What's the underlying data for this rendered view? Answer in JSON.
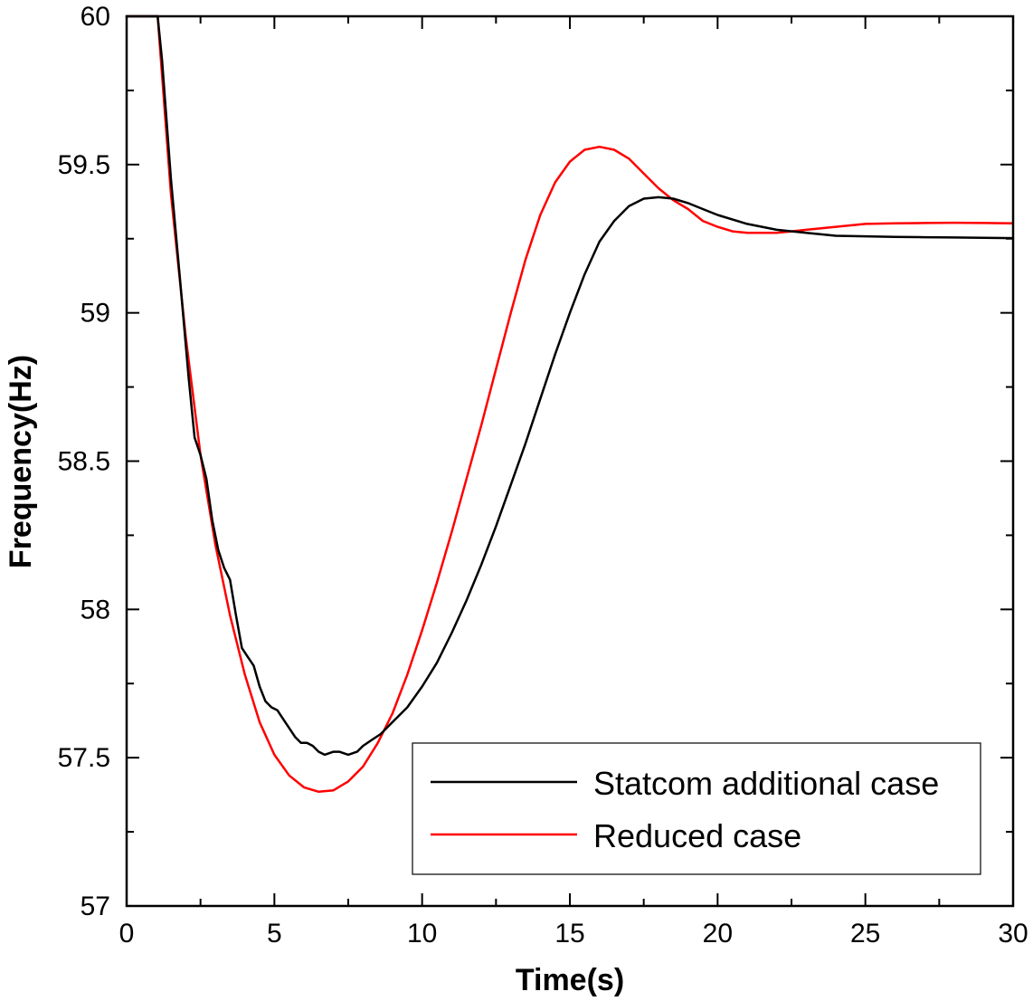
{
  "chart_data": {
    "type": "line",
    "title": "",
    "xlabel": "Time(s)",
    "ylabel": "Frequency(Hz)",
    "xlim": [
      0,
      30
    ],
    "ylim": [
      57,
      60
    ],
    "x_ticks": [
      0,
      5,
      10,
      15,
      20,
      25,
      30
    ],
    "x_tick_labels": [
      "0",
      "5",
      "10",
      "15",
      "20",
      "25",
      "30"
    ],
    "y_ticks": [
      57,
      57.5,
      58,
      58.5,
      59,
      59.5,
      60
    ],
    "y_tick_labels": [
      "57",
      "57.5",
      "58",
      "58.5",
      "59",
      "59.5",
      "60"
    ],
    "grid": false,
    "legend_position": "bottom-right",
    "series": [
      {
        "name": "Statcom additional case",
        "color": "#000000",
        "x": [
          0,
          1.05,
          1.2,
          1.5,
          1.8,
          2.1,
          2.3,
          2.5,
          2.7,
          2.9,
          3.1,
          3.3,
          3.5,
          3.7,
          3.9,
          4.1,
          4.3,
          4.5,
          4.7,
          4.9,
          5.1,
          5.3,
          5.5,
          5.7,
          5.9,
          6.1,
          6.3,
          6.5,
          6.7,
          7.0,
          7.2,
          7.5,
          7.8,
          8.0,
          8.3,
          8.6,
          9.0,
          9.5,
          10,
          10.5,
          11,
          11.5,
          12,
          12.5,
          13,
          13.5,
          14,
          14.5,
          15,
          15.5,
          16,
          16.5,
          17,
          17.5,
          18,
          18.5,
          19,
          19.5,
          20,
          21,
          22,
          23,
          24,
          25,
          26,
          27,
          28,
          29,
          30
        ],
        "values": [
          60.0,
          60.0,
          59.85,
          59.45,
          59.12,
          58.78,
          58.58,
          58.52,
          58.44,
          58.3,
          58.2,
          58.14,
          58.1,
          57.98,
          57.87,
          57.84,
          57.81,
          57.74,
          57.69,
          57.67,
          57.66,
          57.63,
          57.6,
          57.57,
          57.55,
          57.55,
          57.54,
          57.52,
          57.51,
          57.52,
          57.52,
          57.51,
          57.52,
          57.54,
          57.56,
          57.58,
          57.62,
          57.67,
          57.74,
          57.82,
          57.92,
          58.03,
          58.15,
          58.28,
          58.42,
          58.56,
          58.71,
          58.86,
          59.0,
          59.13,
          59.24,
          59.31,
          59.36,
          59.385,
          59.39,
          59.385,
          59.37,
          59.35,
          59.33,
          59.3,
          59.28,
          59.27,
          59.26,
          59.258,
          59.256,
          59.255,
          59.254,
          59.253,
          59.252
        ]
      },
      {
        "name": "Reduced case",
        "color": "#ff0000",
        "x": [
          0,
          1.05,
          1.2,
          1.5,
          2.0,
          2.5,
          3.0,
          3.5,
          4.0,
          4.5,
          5.0,
          5.5,
          6.0,
          6.5,
          7.0,
          7.5,
          8.0,
          8.5,
          9.0,
          9.5,
          10,
          10.5,
          11,
          11.5,
          12,
          12.5,
          13,
          13.5,
          14,
          14.5,
          15,
          15.5,
          16,
          16.5,
          17,
          17.5,
          18,
          18.5,
          19,
          19.5,
          20,
          20.5,
          21,
          21.5,
          22,
          22.5,
          23,
          24,
          25,
          26,
          27,
          28,
          29,
          30
        ],
        "values": [
          60.0,
          60.0,
          59.8,
          59.4,
          58.92,
          58.52,
          58.22,
          57.98,
          57.78,
          57.62,
          57.51,
          57.44,
          57.4,
          57.385,
          57.39,
          57.42,
          57.47,
          57.55,
          57.65,
          57.78,
          57.93,
          58.09,
          58.26,
          58.44,
          58.62,
          58.81,
          59.0,
          59.18,
          59.33,
          59.44,
          59.51,
          59.55,
          59.56,
          59.55,
          59.52,
          59.47,
          59.42,
          59.38,
          59.35,
          59.31,
          59.29,
          59.275,
          59.27,
          59.27,
          59.27,
          59.275,
          59.28,
          59.29,
          59.3,
          59.302,
          59.303,
          59.304,
          59.303,
          59.302
        ]
      }
    ]
  }
}
